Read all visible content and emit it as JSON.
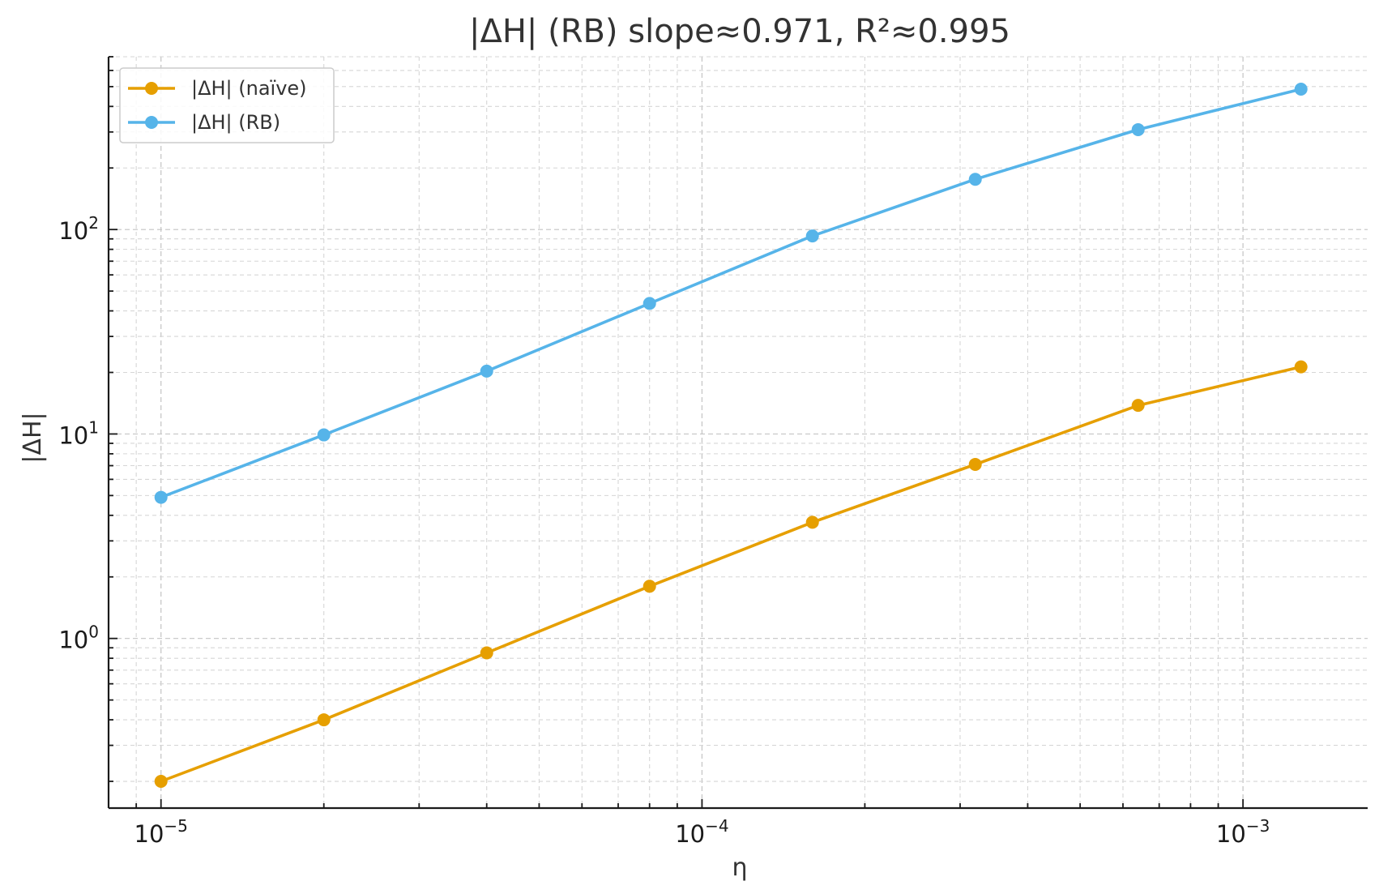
{
  "chart_data": {
    "type": "line",
    "title": "|ΔH| (RB)  slope≈0.971,  R²≈0.995",
    "xlabel": "η",
    "ylabel": "|ΔH|",
    "xscale": "log",
    "yscale": "log",
    "xlim": [
      8e-06,
      0.0017
    ],
    "ylim": [
      0.148,
      700
    ],
    "grid": "both (major and minor), dashed",
    "legend_position": "top-left",
    "x_ticks": [
      {
        "value": 1e-05,
        "base": "10",
        "exp": "−5"
      },
      {
        "value": 0.0001,
        "base": "10",
        "exp": "−4"
      },
      {
        "value": 0.001,
        "base": "10",
        "exp": "−3"
      }
    ],
    "y_ticks": [
      {
        "value": 1,
        "base": "10",
        "exp": "0"
      },
      {
        "value": 10,
        "base": "10",
        "exp": "1"
      },
      {
        "value": 100,
        "base": "10",
        "exp": "2"
      }
    ],
    "x": [
      1e-05,
      2e-05,
      4e-05,
      8e-05,
      0.00016,
      0.00032,
      0.00064,
      0.00128
    ],
    "series": [
      {
        "name": "|ΔH| (naïve)",
        "color": "#E69F00",
        "values": [
          0.2,
          0.4,
          0.85,
          1.8,
          3.7,
          7.1,
          13.8,
          21.3
        ]
      },
      {
        "name": "|ΔH| (RB)",
        "color": "#56B4E9",
        "values": [
          4.9,
          9.9,
          20.3,
          43.5,
          93.0,
          176.0,
          308.0,
          486.0
        ]
      }
    ]
  }
}
